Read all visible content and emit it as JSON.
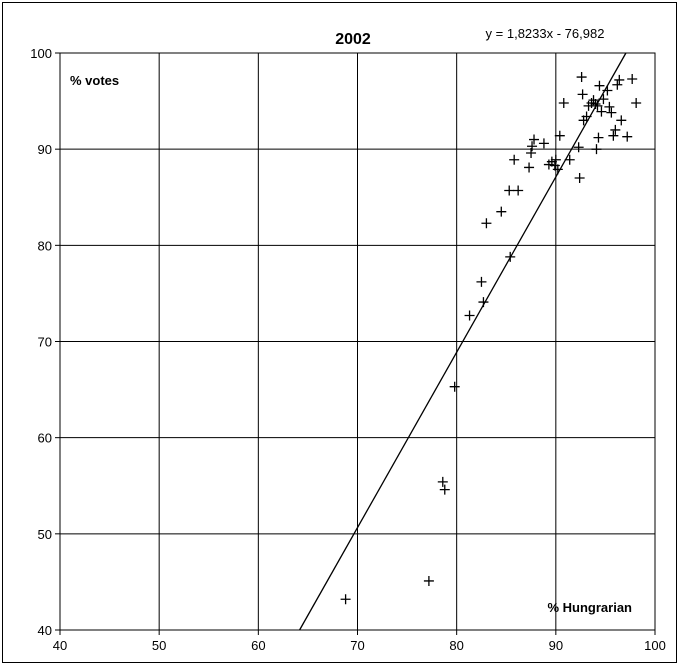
{
  "chart_data": {
    "type": "scatter",
    "title": "2002",
    "equation": "y = 1,8233x - 76,982",
    "ylabel": "% votes",
    "xlabel": "% Hungrarian",
    "xlim": [
      40,
      100
    ],
    "ylim": [
      40,
      100
    ],
    "xticks": [
      "40",
      "50",
      "60",
      "70",
      "80",
      "90",
      "100"
    ],
    "yticks": [
      "40",
      "50",
      "60",
      "70",
      "80",
      "90",
      "100"
    ],
    "grid": true,
    "marker": "+",
    "trendline": {
      "slope": 1.8233,
      "intercept": -76.982
    },
    "points": [
      [
        68.8,
        43.2
      ],
      [
        77.2,
        45.1
      ],
      [
        78.6,
        55.4
      ],
      [
        78.8,
        54.6
      ],
      [
        79.8,
        65.3
      ],
      [
        81.3,
        72.7
      ],
      [
        82.5,
        76.2
      ],
      [
        82.7,
        74.1
      ],
      [
        83.0,
        82.3
      ],
      [
        84.5,
        83.5
      ],
      [
        85.3,
        85.7
      ],
      [
        85.4,
        78.8
      ],
      [
        85.8,
        88.9
      ],
      [
        86.2,
        85.7
      ],
      [
        87.3,
        88.1
      ],
      [
        87.5,
        89.6
      ],
      [
        87.6,
        90.3
      ],
      [
        87.8,
        91.0
      ],
      [
        88.8,
        90.6
      ],
      [
        89.3,
        88.4
      ],
      [
        89.6,
        88.7
      ],
      [
        89.9,
        88.3
      ],
      [
        90.0,
        88.9
      ],
      [
        90.2,
        87.9
      ],
      [
        90.4,
        91.4
      ],
      [
        90.8,
        94.8
      ],
      [
        91.4,
        88.9
      ],
      [
        92.3,
        90.2
      ],
      [
        92.4,
        87.0
      ],
      [
        92.6,
        97.5
      ],
      [
        92.7,
        95.7
      ],
      [
        92.8,
        93.0
      ],
      [
        93.1,
        93.4
      ],
      [
        93.3,
        94.5
      ],
      [
        93.6,
        94.8
      ],
      [
        93.8,
        95.1
      ],
      [
        94.0,
        94.7
      ],
      [
        94.1,
        90.0
      ],
      [
        94.2,
        94.5
      ],
      [
        94.3,
        91.2
      ],
      [
        94.4,
        96.6
      ],
      [
        94.6,
        93.9
      ],
      [
        94.8,
        95.2
      ],
      [
        95.2,
        96.1
      ],
      [
        95.4,
        94.4
      ],
      [
        95.6,
        93.8
      ],
      [
        95.8,
        91.4
      ],
      [
        96.0,
        92.0
      ],
      [
        96.2,
        96.7
      ],
      [
        96.4,
        97.2
      ],
      [
        96.6,
        93.0
      ],
      [
        97.2,
        91.3
      ],
      [
        97.7,
        97.3
      ],
      [
        98.1,
        94.8
      ]
    ]
  }
}
